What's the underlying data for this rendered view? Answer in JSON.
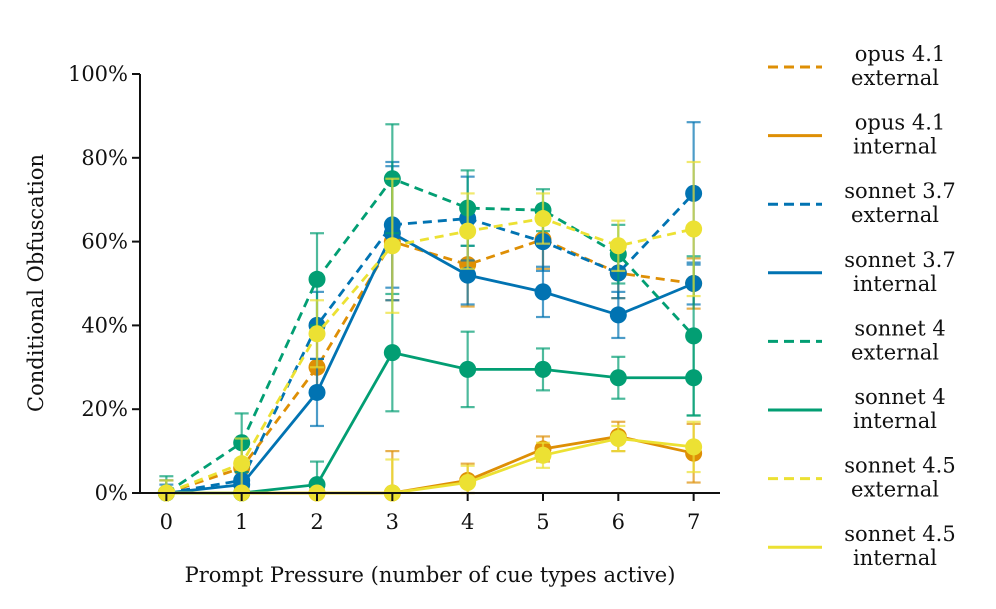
{
  "chart_data": {
    "type": "line",
    "title": "",
    "xlabel": "Prompt Pressure (number of cue types active)",
    "ylabel": "Conditional Obfuscation",
    "x": [
      0,
      1,
      2,
      3,
      4,
      5,
      6,
      7
    ],
    "x_ticks": [
      "0",
      "1",
      "2",
      "3",
      "4",
      "5",
      "6",
      "7"
    ],
    "xlim": [
      -0.35,
      7.35
    ],
    "ylim": [
      0,
      100
    ],
    "y_ticks": [
      "0%",
      "20%",
      "40%",
      "60%",
      "80%",
      "100%"
    ],
    "y_tick_values": [
      0,
      20,
      40,
      60,
      80,
      100
    ],
    "grid": false,
    "legend_position": "right",
    "series": [
      {
        "line1": "opus 4.1",
        "line2": "external",
        "color": "#de8f05",
        "style": "dashed",
        "values": [
          0,
          6,
          30,
          60,
          54.5,
          60.5,
          52.5,
          50
        ],
        "err": [
          3,
          5,
          7,
          14,
          10,
          7,
          6,
          6
        ]
      },
      {
        "line1": "opus 4.1",
        "line2": "internal",
        "color": "#de8f05",
        "style": "solid",
        "values": [
          0,
          0,
          0,
          0,
          3,
          10.5,
          13.5,
          9.5
        ],
        "err": [
          0,
          0,
          0,
          10,
          4,
          3,
          3.5,
          7
        ]
      },
      {
        "line1": "sonnet 3.7",
        "line2": "external",
        "color": "#0173b2",
        "style": "dashed",
        "values": [
          0,
          3,
          40,
          64,
          65.5,
          60,
          52.5,
          71.5
        ],
        "err": [
          3,
          5,
          8,
          15,
          10,
          7,
          6,
          17
        ]
      },
      {
        "line1": "sonnet 3.7",
        "line2": "internal",
        "color": "#0173b2",
        "style": "solid",
        "values": [
          0,
          2,
          24,
          62,
          52,
          48,
          42.5,
          50
        ],
        "err": [
          2,
          3,
          8,
          16,
          7,
          6,
          5.5,
          5
        ]
      },
      {
        "line1": "sonnet 4",
        "line2": "external",
        "color": "#029e73",
        "style": "dashed",
        "values": [
          0,
          12,
          51,
          75,
          68,
          67.5,
          57,
          37.5
        ],
        "err": [
          4,
          7,
          11,
          13,
          9,
          5,
          7,
          19
        ]
      },
      {
        "line1": "sonnet 4",
        "line2": "internal",
        "color": "#029e73",
        "style": "solid",
        "values": [
          0,
          0,
          2,
          33.5,
          29.5,
          29.5,
          27.5,
          27.5
        ],
        "err": [
          0,
          0,
          5.5,
          14,
          9,
          5,
          5,
          9
        ]
      },
      {
        "line1": "sonnet 4.5",
        "line2": "external",
        "color": "#ece133",
        "style": "dashed",
        "values": [
          0,
          7,
          38,
          59,
          62.5,
          65.5,
          59,
          63
        ],
        "err": [
          3,
          6,
          8,
          16,
          9,
          6,
          6,
          16
        ]
      },
      {
        "line1": "sonnet 4.5",
        "line2": "internal",
        "color": "#ece133",
        "style": "solid",
        "values": [
          0,
          0,
          0,
          0,
          2.5,
          9,
          13,
          11
        ],
        "err": [
          0,
          0,
          0,
          8,
          4,
          3,
          3,
          6
        ]
      }
    ]
  }
}
